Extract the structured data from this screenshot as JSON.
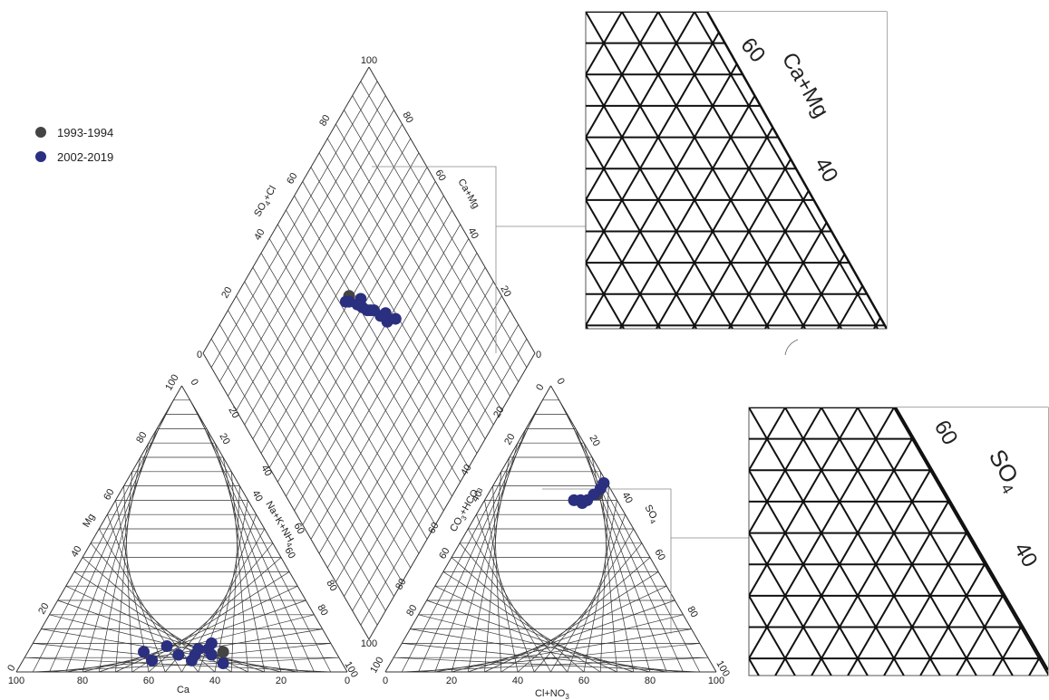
{
  "legend": [
    {
      "label": "1993-1994",
      "color": "#444444"
    },
    {
      "label": "2002-2019",
      "color": "#2a2f7f"
    }
  ],
  "axes": {
    "cation_bottom": "Ca",
    "cation_left": "Mg",
    "cation_right_parts": [
      "Na+K+NH",
      "4"
    ],
    "anion_bottom_parts": [
      "Cl+NO",
      "3"
    ],
    "anion_left_parts": [
      "CO",
      "3",
      "+HCO",
      "3"
    ],
    "anion_right_parts": [
      "SO",
      "4"
    ],
    "diamond_upper_left_parts": [
      "SO",
      "4",
      "+Cl"
    ],
    "diamond_upper_right": "Ca+Mg"
  },
  "ticks": {
    "bottom_cation": [
      "100",
      "80",
      "60",
      "40",
      "20",
      "0"
    ],
    "left_cation": [
      "0",
      "20",
      "40",
      "60",
      "80",
      "100"
    ],
    "right_cation": [
      "100",
      "80",
      "60",
      "40",
      "20",
      "0"
    ],
    "bottom_anion": [
      "0",
      "20",
      "40",
      "60",
      "80",
      "100"
    ],
    "left_anion": [
      "100",
      "80",
      "60",
      "40",
      "20",
      "0"
    ],
    "right_anion": [
      "0",
      "20",
      "40",
      "60",
      "80",
      "100"
    ],
    "diamond_top": "100",
    "diamond_bottom": "100",
    "diamond_left": "0",
    "diamond_right": "0",
    "diamond_ul_values": [
      "80",
      "60",
      "40",
      "20"
    ],
    "diamond_ur_values": [
      "80",
      "60",
      "40",
      "20"
    ],
    "diamond_ll_values": [
      "20",
      "40",
      "60",
      "80"
    ],
    "diamond_lr_values": [
      "20",
      "40",
      "60",
      "80"
    ]
  },
  "insets": {
    "camg": {
      "label": "Ca+Mg",
      "tick_a": "60",
      "tick_b": "40"
    },
    "so4": {
      "label_parts": [
        "SO",
        "4"
      ],
      "tick_a": "60",
      "tick_b": "40"
    }
  },
  "chart_data": {
    "type": "scatter",
    "title": "",
    "series": [
      {
        "name": "1993-1994",
        "color": "#444444",
        "cation_points": [
          {
            "Ca": 34,
            "Mg": 7
          }
        ],
        "anion_points": [
          {
            "ClNO3": 33,
            "SO4": 62
          }
        ],
        "diamond_points": [
          {
            "SO4Cl": 54,
            "CaMg": 34
          }
        ]
      },
      {
        "name": "2002-2019",
        "color": "#2a2f7f",
        "cation_points": [
          {
            "Ca": 58,
            "Mg": 7
          },
          {
            "Ca": 57,
            "Mg": 4
          },
          {
            "Ca": 50,
            "Mg": 9
          },
          {
            "Ca": 48,
            "Mg": 6
          },
          {
            "Ca": 45,
            "Mg": 4
          },
          {
            "Ca": 43,
            "Mg": 6
          },
          {
            "Ca": 41,
            "Mg": 8
          },
          {
            "Ca": 38,
            "Mg": 8
          },
          {
            "Ca": 36,
            "Mg": 10
          },
          {
            "Ca": 38,
            "Mg": 6
          },
          {
            "Ca": 36,
            "Mg": 3
          }
        ],
        "anion_points": [
          {
            "ClNO3": 33,
            "SO4": 66
          },
          {
            "ClNO3": 33,
            "SO4": 64
          },
          {
            "ClNO3": 32,
            "SO4": 62
          },
          {
            "ClNO3": 31,
            "SO4": 60
          },
          {
            "ClNO3": 30,
            "SO4": 59
          },
          {
            "ClNO3": 29,
            "SO4": 60
          },
          {
            "ClNO3": 27,
            "SO4": 60
          }
        ],
        "diamond_points": [
          {
            "SO4Cl": 64,
            "CaMg": 52
          },
          {
            "SO4Cl": 61,
            "CaMg": 50
          },
          {
            "SO4Cl": 62,
            "CaMg": 48
          },
          {
            "SO4Cl": 60,
            "CaMg": 47
          },
          {
            "SO4Cl": 59,
            "CaMg": 44
          },
          {
            "SO4Cl": 58,
            "CaMg": 43
          },
          {
            "SO4Cl": 57,
            "CaMg": 42
          },
          {
            "SO4Cl": 56,
            "CaMg": 40
          },
          {
            "SO4Cl": 57,
            "CaMg": 38
          },
          {
            "SO4Cl": 55,
            "CaMg": 38
          },
          {
            "SO4Cl": 53,
            "CaMg": 35
          },
          {
            "SO4Cl": 52,
            "CaMg": 34
          }
        ]
      }
    ]
  }
}
